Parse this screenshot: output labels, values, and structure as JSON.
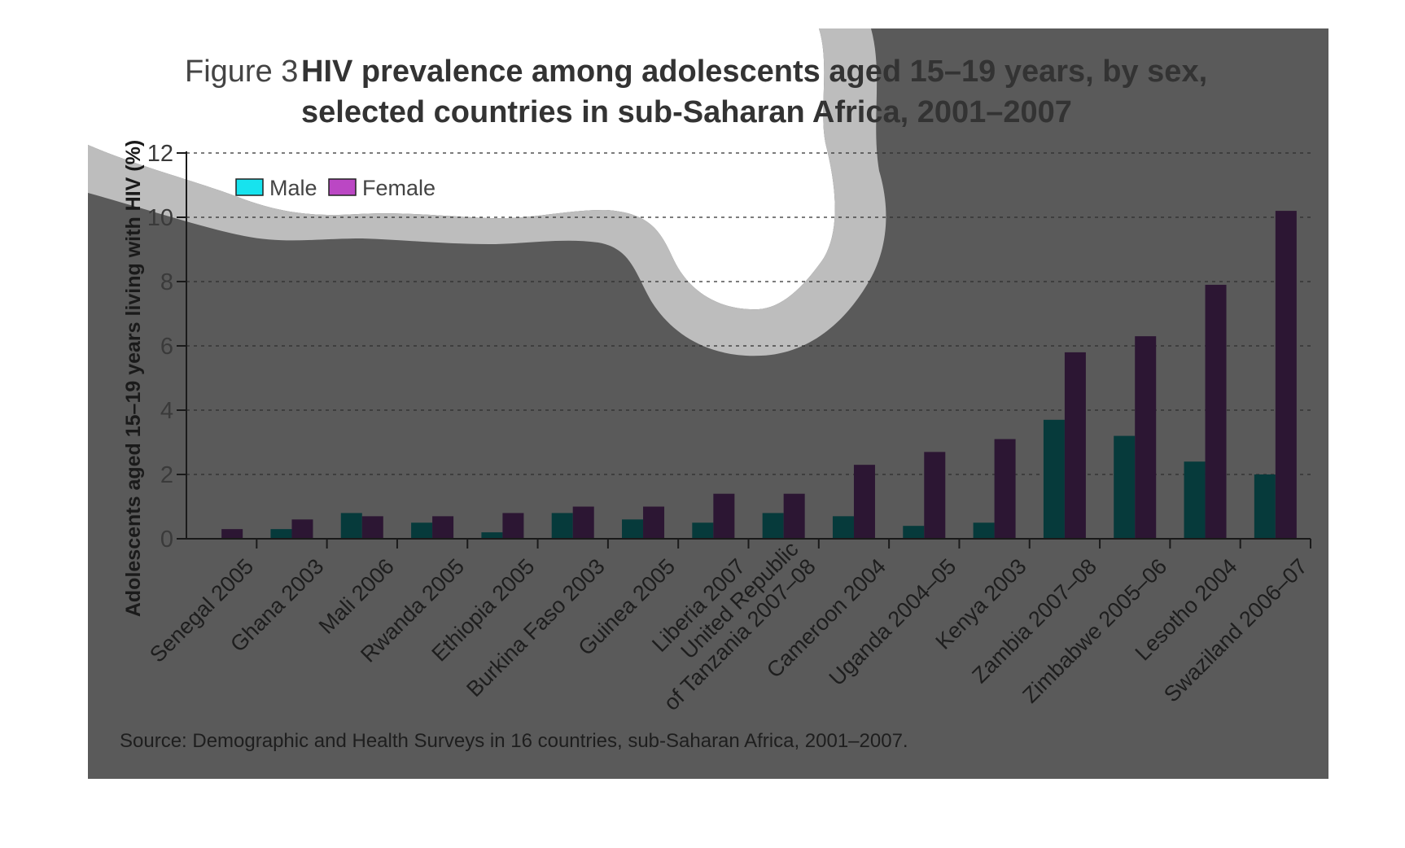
{
  "figure_label": "Figure 3",
  "colors": {
    "panel": "#5a5a5a",
    "stripe": "#bdbdbd",
    "male_bar": "#063a3b",
    "female_bar": "#2c1633",
    "male_legend": "#17e3ee",
    "female_legend": "#bb47c4",
    "axis": "#1a1a1a",
    "grid": "#2e2e2e"
  },
  "source": "Source: Demographic and Health Surveys in 16 countries, sub-Saharan Africa, 2001–2007.",
  "chart_data": {
    "type": "bar",
    "title_lines": [
      "HIV prevalence among adolescents aged 15–19 years, by sex,",
      "selected countries in sub-Saharan Africa, 2001–2007"
    ],
    "ylabel": "Adolescents aged 15–19 years living with HIV (%)",
    "xlabel": "",
    "ylim": [
      0,
      12
    ],
    "yticks": [
      0,
      2,
      4,
      6,
      8,
      10,
      12
    ],
    "grid": true,
    "legend_position": "top-left",
    "categories": [
      [
        "Senegal 2005"
      ],
      [
        "Ghana 2003"
      ],
      [
        "Mali 2006"
      ],
      [
        "Rwanda 2005"
      ],
      [
        "Ethiopia 2005"
      ],
      [
        "Burkina Faso 2003"
      ],
      [
        "Guinea 2005"
      ],
      [
        "Liberia 2007"
      ],
      [
        "United Republic",
        "of Tanzania 2007–08"
      ],
      [
        "Cameroon 2004"
      ],
      [
        "Uganda 2004–05"
      ],
      [
        "Kenya 2003"
      ],
      [
        "Zambia 2007–08"
      ],
      [
        "Zimbabwe 2005–06"
      ],
      [
        "Lesotho 2004"
      ],
      [
        "Swaziland 2006–07"
      ]
    ],
    "series": [
      {
        "name": "Male",
        "values": [
          0,
          0.3,
          0.8,
          0.5,
          0.2,
          0.8,
          0.6,
          0.5,
          0.8,
          0.7,
          0.4,
          0.5,
          3.7,
          3.2,
          2.4,
          2.0
        ]
      },
      {
        "name": "Female",
        "values": [
          0.3,
          0.6,
          0.7,
          0.7,
          0.8,
          1.0,
          1.0,
          1.4,
          1.4,
          2.3,
          2.7,
          3.1,
          5.8,
          6.3,
          7.9,
          10.2
        ]
      }
    ]
  }
}
